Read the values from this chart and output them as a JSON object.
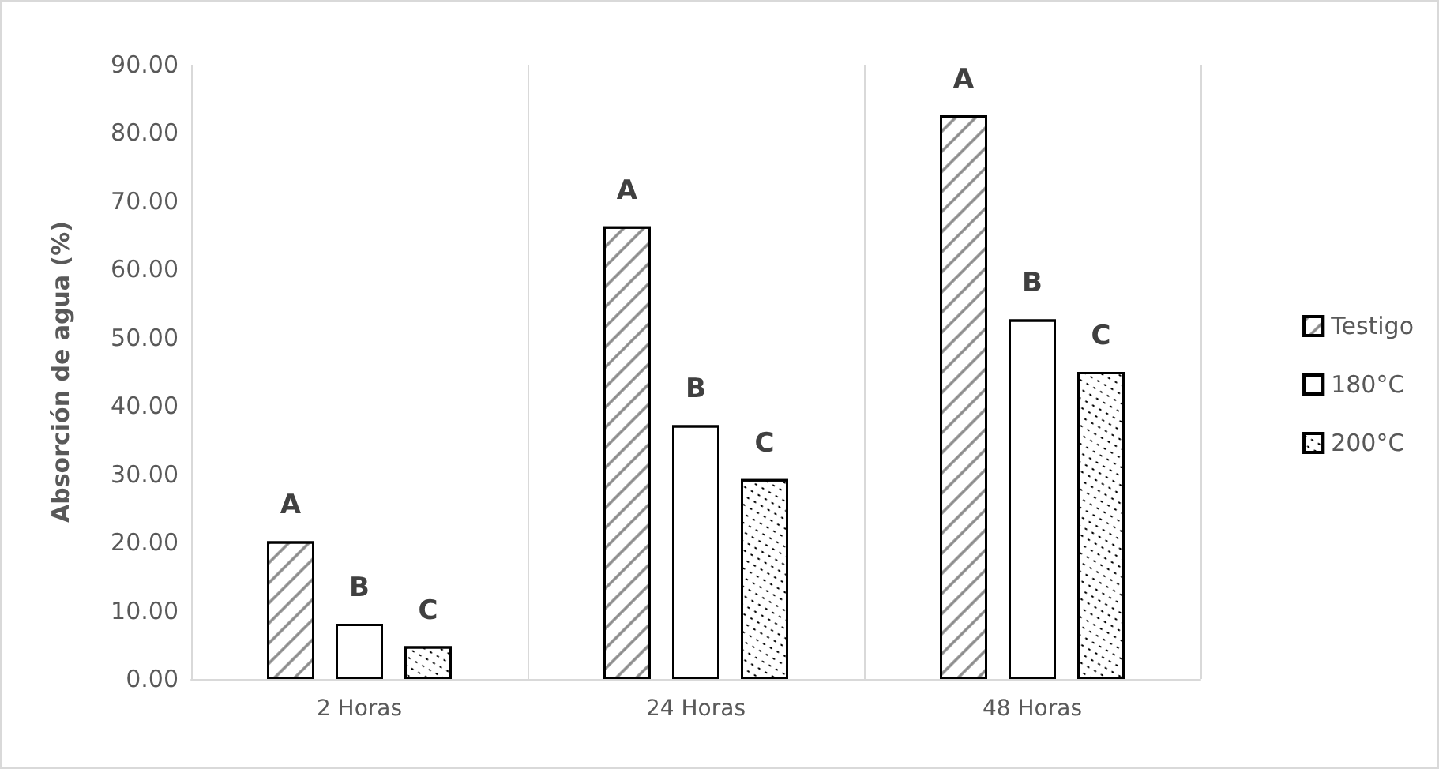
{
  "chart_data": {
    "type": "bar",
    "ylabel": "Absorción de agua (%)",
    "categories": [
      "2 Horas",
      "24 Horas",
      "48 Horas"
    ],
    "series": [
      {
        "name": "Testigo",
        "color": "#000000",
        "values": [
          20.2,
          66.3,
          82.6
        ],
        "value_labels": [
          "A",
          "A",
          "A"
        ]
      },
      {
        "name": "180°C",
        "color": "#000000",
        "values": [
          8.1,
          37.2,
          52.7
        ],
        "value_labels": [
          "B",
          "B",
          "B"
        ]
      },
      {
        "name": "200°C",
        "color": "#000000",
        "values": [
          4.8,
          29.3,
          45.0
        ],
        "value_labels": [
          "C",
          "C",
          "C"
        ]
      }
    ],
    "ylim": [
      0,
      90
    ],
    "yticks": [
      {
        "value": 0,
        "label": "0.00"
      },
      {
        "value": 10,
        "label": "10.00"
      },
      {
        "value": 20,
        "label": "20.00"
      },
      {
        "value": 30,
        "label": "30.00"
      },
      {
        "value": 40,
        "label": "40.00"
      },
      {
        "value": 50,
        "label": "50.00"
      },
      {
        "value": 60,
        "label": "60.00"
      },
      {
        "value": 70,
        "label": "70.00"
      },
      {
        "value": 80,
        "label": "80.00"
      },
      {
        "value": 90,
        "label": "90.00"
      }
    ],
    "grid": "x",
    "legend": "right"
  }
}
